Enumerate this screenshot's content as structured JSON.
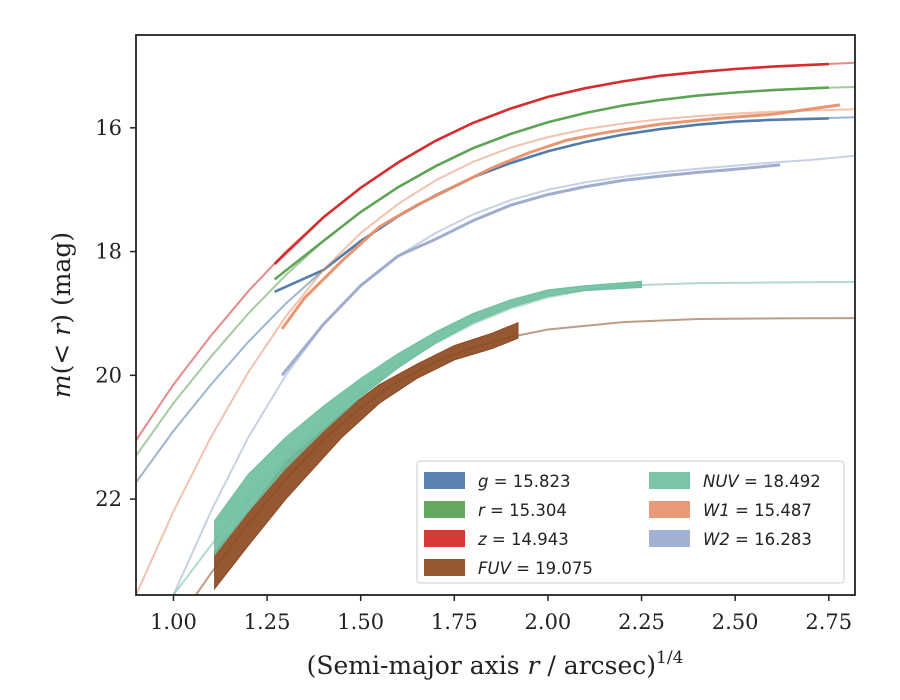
{
  "chart_data": {
    "type": "line",
    "title": "",
    "xlabel": "(Semi-major axis r / arcsec)",
    "xlabel_var": "r",
    "xlabel_parts": [
      "(Semi-major axis ",
      "r",
      " / arcsec)",
      "1/4"
    ],
    "ylabel": "m(< r) (mag)",
    "ylabel_parts": [
      "m",
      "(< ",
      "r",
      ") (mag)"
    ],
    "xlim": [
      0.9,
      2.82
    ],
    "ylim": [
      23.55,
      14.5
    ],
    "y_inverted": true,
    "xticks": [
      1.0,
      1.25,
      1.5,
      1.75,
      2.0,
      2.25,
      2.5,
      2.75
    ],
    "xtick_labels": [
      "1.00",
      "1.25",
      "1.50",
      "1.75",
      "2.00",
      "2.25",
      "2.50",
      "2.75"
    ],
    "yticks": [
      16,
      18,
      20,
      22
    ],
    "ytick_labels": [
      "16",
      "18",
      "20",
      "22"
    ],
    "grid": false,
    "legend_position": "lower-right",
    "legend_columns": 2,
    "series": [
      {
        "name": "g = 15.823",
        "var": "g",
        "value_text": "15.823",
        "color": "#4c78a8",
        "model": [
          [
            0.9,
            21.73
          ],
          [
            1.0,
            20.9
          ],
          [
            1.1,
            20.15
          ],
          [
            1.2,
            19.46
          ],
          [
            1.3,
            18.84
          ],
          [
            1.4,
            18.3
          ],
          [
            1.5,
            17.83
          ],
          [
            1.6,
            17.43
          ],
          [
            1.7,
            17.09
          ],
          [
            1.8,
            16.8
          ],
          [
            1.9,
            16.57
          ],
          [
            2.0,
            16.38
          ],
          [
            2.1,
            16.23
          ],
          [
            2.2,
            16.11
          ],
          [
            2.3,
            16.02
          ],
          [
            2.4,
            15.95
          ],
          [
            2.5,
            15.9
          ],
          [
            2.6,
            15.87
          ],
          [
            2.7,
            15.85
          ],
          [
            2.82,
            15.83
          ]
        ],
        "data": [
          [
            1.27,
            18.65
          ],
          [
            1.4,
            18.3
          ],
          [
            1.5,
            17.83
          ],
          [
            1.6,
            17.43
          ],
          [
            1.7,
            17.09
          ],
          [
            1.8,
            16.8
          ],
          [
            1.9,
            16.57
          ],
          [
            2.0,
            16.38
          ],
          [
            2.1,
            16.23
          ],
          [
            2.2,
            16.11
          ],
          [
            2.3,
            16.02
          ],
          [
            2.4,
            15.95
          ],
          [
            2.5,
            15.9
          ],
          [
            2.6,
            15.87
          ],
          [
            2.75,
            15.85
          ]
        ],
        "band_low": [],
        "band_high": []
      },
      {
        "name": "r = 15.304",
        "var": "r",
        "value_text": "15.304",
        "color": "#59a14f",
        "model": [
          [
            0.9,
            21.3
          ],
          [
            1.0,
            20.45
          ],
          [
            1.1,
            19.7
          ],
          [
            1.2,
            19.0
          ],
          [
            1.3,
            18.38
          ],
          [
            1.4,
            17.83
          ],
          [
            1.5,
            17.36
          ],
          [
            1.6,
            16.96
          ],
          [
            1.7,
            16.62
          ],
          [
            1.8,
            16.33
          ],
          [
            1.9,
            16.1
          ],
          [
            2.0,
            15.91
          ],
          [
            2.1,
            15.76
          ],
          [
            2.2,
            15.64
          ],
          [
            2.3,
            15.55
          ],
          [
            2.4,
            15.48
          ],
          [
            2.5,
            15.43
          ],
          [
            2.6,
            15.39
          ],
          [
            2.7,
            15.36
          ],
          [
            2.82,
            15.34
          ]
        ],
        "data": [
          [
            1.27,
            18.45
          ],
          [
            1.4,
            17.83
          ],
          [
            1.5,
            17.36
          ],
          [
            1.6,
            16.96
          ],
          [
            1.7,
            16.62
          ],
          [
            1.8,
            16.33
          ],
          [
            1.9,
            16.1
          ],
          [
            2.0,
            15.91
          ],
          [
            2.1,
            15.76
          ],
          [
            2.2,
            15.64
          ],
          [
            2.3,
            15.55
          ],
          [
            2.4,
            15.48
          ],
          [
            2.5,
            15.43
          ],
          [
            2.6,
            15.39
          ],
          [
            2.75,
            15.35
          ]
        ],
        "band_low": [],
        "band_high": []
      },
      {
        "name": "z = 14.943",
        "var": "z",
        "value_text": "14.943",
        "color": "#d62728",
        "model": [
          [
            0.9,
            21.05
          ],
          [
            1.0,
            20.15
          ],
          [
            1.1,
            19.36
          ],
          [
            1.2,
            18.64
          ],
          [
            1.3,
            18.0
          ],
          [
            1.4,
            17.45
          ],
          [
            1.5,
            16.97
          ],
          [
            1.6,
            16.56
          ],
          [
            1.7,
            16.21
          ],
          [
            1.8,
            15.92
          ],
          [
            1.9,
            15.69
          ],
          [
            2.0,
            15.5
          ],
          [
            2.1,
            15.36
          ],
          [
            2.2,
            15.25
          ],
          [
            2.3,
            15.16
          ],
          [
            2.4,
            15.1
          ],
          [
            2.5,
            15.05
          ],
          [
            2.6,
            15.01
          ],
          [
            2.7,
            14.98
          ],
          [
            2.82,
            14.95
          ]
        ],
        "data": [
          [
            1.27,
            18.2
          ],
          [
            1.4,
            17.45
          ],
          [
            1.5,
            16.97
          ],
          [
            1.6,
            16.56
          ],
          [
            1.7,
            16.21
          ],
          [
            1.8,
            15.92
          ],
          [
            1.9,
            15.69
          ],
          [
            2.0,
            15.5
          ],
          [
            2.1,
            15.36
          ],
          [
            2.2,
            15.25
          ],
          [
            2.3,
            15.16
          ],
          [
            2.4,
            15.1
          ],
          [
            2.5,
            15.05
          ],
          [
            2.6,
            15.01
          ],
          [
            2.75,
            14.97
          ]
        ],
        "band_low": [],
        "band_high": []
      },
      {
        "name": "FUV = 19.075",
        "var": "FUV",
        "value_text": "19.075",
        "color": "#8c4a22",
        "model": [
          [
            1.06,
            23.55
          ],
          [
            1.1,
            23.2
          ],
          [
            1.2,
            22.4
          ],
          [
            1.3,
            21.68
          ],
          [
            1.4,
            21.05
          ],
          [
            1.5,
            20.52
          ],
          [
            1.6,
            20.1
          ],
          [
            1.7,
            19.78
          ],
          [
            1.8,
            19.55
          ],
          [
            1.9,
            19.38
          ],
          [
            2.0,
            19.26
          ],
          [
            2.2,
            19.14
          ],
          [
            2.4,
            19.09
          ],
          [
            2.6,
            19.08
          ],
          [
            2.82,
            19.075
          ]
        ],
        "data": [],
        "band_low": [
          [
            1.11,
            23.45
          ],
          [
            1.2,
            22.75
          ],
          [
            1.3,
            22.0
          ],
          [
            1.45,
            21.0
          ],
          [
            1.55,
            20.45
          ],
          [
            1.65,
            20.05
          ],
          [
            1.75,
            19.75
          ],
          [
            1.85,
            19.57
          ],
          [
            1.92,
            19.4
          ]
        ],
        "band_high": [
          [
            1.11,
            22.85
          ],
          [
            1.2,
            22.2
          ],
          [
            1.3,
            21.4
          ],
          [
            1.45,
            20.6
          ],
          [
            1.55,
            20.15
          ],
          [
            1.65,
            19.82
          ],
          [
            1.75,
            19.52
          ],
          [
            1.85,
            19.32
          ],
          [
            1.92,
            19.15
          ]
        ]
      },
      {
        "name": "NUV = 18.492",
        "var": "NUV",
        "value_text": "18.492",
        "color": "#6fbf9f",
        "model": [
          [
            1.0,
            23.55
          ],
          [
            1.1,
            22.75
          ],
          [
            1.2,
            22.0
          ],
          [
            1.3,
            21.35
          ],
          [
            1.4,
            20.78
          ],
          [
            1.5,
            20.28
          ],
          [
            1.6,
            19.85
          ],
          [
            1.7,
            19.48
          ],
          [
            1.8,
            19.17
          ],
          [
            1.9,
            18.92
          ],
          [
            2.0,
            18.74
          ],
          [
            2.1,
            18.62
          ],
          [
            2.2,
            18.55
          ],
          [
            2.4,
            18.51
          ],
          [
            2.6,
            18.5
          ],
          [
            2.82,
            18.49
          ]
        ],
        "data": [],
        "band_low": [
          [
            1.11,
            22.9
          ],
          [
            1.2,
            22.2
          ],
          [
            1.3,
            21.5
          ],
          [
            1.4,
            20.9
          ],
          [
            1.5,
            20.35
          ],
          [
            1.6,
            19.88
          ],
          [
            1.7,
            19.48
          ],
          [
            1.8,
            19.15
          ],
          [
            1.9,
            18.9
          ],
          [
            2.0,
            18.72
          ],
          [
            2.1,
            18.63
          ],
          [
            2.25,
            18.58
          ]
        ],
        "band_high": [
          [
            1.11,
            22.35
          ],
          [
            1.2,
            21.6
          ],
          [
            1.3,
            21.0
          ],
          [
            1.4,
            20.5
          ],
          [
            1.5,
            20.05
          ],
          [
            1.6,
            19.65
          ],
          [
            1.7,
            19.3
          ],
          [
            1.8,
            19.0
          ],
          [
            1.9,
            18.78
          ],
          [
            2.0,
            18.62
          ],
          [
            2.1,
            18.55
          ],
          [
            2.25,
            18.48
          ]
        ]
      },
      {
        "name": "W1 = 15.487",
        "var": "W1",
        "value_text": "15.487",
        "color": "#e8906c",
        "model": [
          [
            0.9,
            23.55
          ],
          [
            1.0,
            22.2
          ],
          [
            1.1,
            21.0
          ],
          [
            1.2,
            19.95
          ],
          [
            1.3,
            19.05
          ],
          [
            1.4,
            18.3
          ],
          [
            1.5,
            17.7
          ],
          [
            1.6,
            17.23
          ],
          [
            1.7,
            16.85
          ],
          [
            1.8,
            16.55
          ],
          [
            1.9,
            16.32
          ],
          [
            2.0,
            16.15
          ],
          [
            2.1,
            16.02
          ],
          [
            2.2,
            15.93
          ],
          [
            2.3,
            15.86
          ],
          [
            2.4,
            15.81
          ],
          [
            2.5,
            15.77
          ],
          [
            2.6,
            15.74
          ],
          [
            2.7,
            15.72
          ],
          [
            2.82,
            15.7
          ]
        ],
        "data": [
          [
            1.29,
            19.25
          ],
          [
            1.35,
            18.75
          ],
          [
            1.45,
            18.15
          ],
          [
            1.55,
            17.6
          ],
          [
            1.65,
            17.25
          ],
          [
            1.75,
            16.95
          ],
          [
            1.85,
            16.65
          ],
          [
            1.95,
            16.4
          ],
          [
            2.05,
            16.2
          ],
          [
            2.15,
            16.08
          ],
          [
            2.3,
            15.94
          ],
          [
            2.45,
            15.85
          ],
          [
            2.6,
            15.78
          ],
          [
            2.78,
            15.63
          ]
        ],
        "band_low": [],
        "band_high": []
      },
      {
        "name": "W2 = 16.283",
        "var": "W2",
        "value_text": "16.283",
        "color": "#9aa9cf",
        "model": [
          [
            1.0,
            23.55
          ],
          [
            1.1,
            22.2
          ],
          [
            1.2,
            21.0
          ],
          [
            1.3,
            20.0
          ],
          [
            1.4,
            19.18
          ],
          [
            1.5,
            18.55
          ],
          [
            1.6,
            18.07
          ],
          [
            1.7,
            17.7
          ],
          [
            1.8,
            17.4
          ],
          [
            1.9,
            17.17
          ],
          [
            2.0,
            17.0
          ],
          [
            2.1,
            16.88
          ],
          [
            2.2,
            16.79
          ],
          [
            2.3,
            16.72
          ],
          [
            2.4,
            16.66
          ],
          [
            2.5,
            16.61
          ],
          [
            2.6,
            16.56
          ],
          [
            2.7,
            16.52
          ],
          [
            2.82,
            16.45
          ]
        ],
        "data": [
          [
            1.29,
            20.0
          ],
          [
            1.4,
            19.18
          ],
          [
            1.5,
            18.55
          ],
          [
            1.6,
            18.07
          ],
          [
            1.7,
            17.8
          ],
          [
            1.8,
            17.5
          ],
          [
            1.9,
            17.25
          ],
          [
            2.0,
            17.08
          ],
          [
            2.1,
            16.95
          ],
          [
            2.2,
            16.85
          ],
          [
            2.3,
            16.78
          ],
          [
            2.4,
            16.72
          ],
          [
            2.5,
            16.67
          ],
          [
            2.62,
            16.6
          ]
        ],
        "band_low": [],
        "band_high": []
      }
    ]
  }
}
